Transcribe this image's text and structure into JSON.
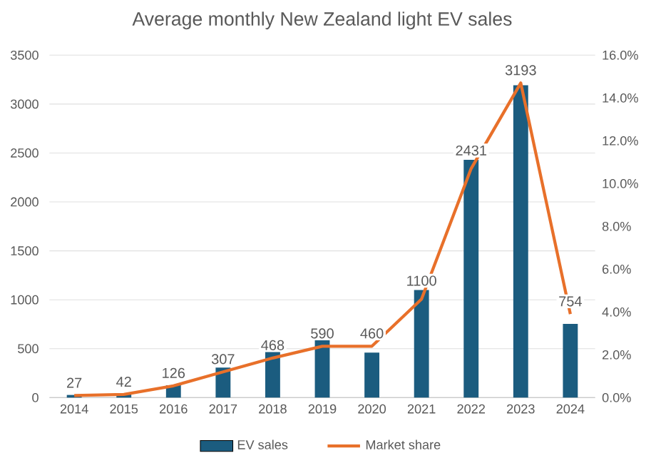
{
  "chart_data": {
    "type": "bar",
    "title": "Average monthly New Zealand light EV sales",
    "categories": [
      "2014",
      "2015",
      "2016",
      "2017",
      "2018",
      "2019",
      "2020",
      "2021",
      "2022",
      "2023",
      "2024"
    ],
    "series": [
      {
        "name": "EV sales",
        "color": "#1b5c7f",
        "values": [
          27,
          42,
          126,
          307,
          468,
          590,
          460,
          1100,
          2431,
          3193,
          754
        ],
        "value_labels": [
          "27",
          "42",
          "126",
          "307",
          "468",
          "590",
          "460",
          "1100",
          "2431",
          "3193",
          "754"
        ]
      },
      {
        "name": "Market share",
        "type": "line",
        "axis": "y2",
        "color": "#e8702a",
        "values": [
          0.1,
          0.15,
          0.55,
          1.2,
          1.85,
          2.4,
          2.4,
          4.6,
          10.7,
          14.7,
          3.9
        ]
      }
    ],
    "ylim": [
      0,
      3500
    ],
    "yticks": [
      0,
      500,
      1000,
      1500,
      2000,
      2500,
      3000,
      3500
    ],
    "y2lim": [
      0,
      16
    ],
    "y2ticks": [
      {
        "value": 0,
        "label": "0.0%"
      },
      {
        "value": 2,
        "label": "2.0%"
      },
      {
        "value": 4,
        "label": "4.0%"
      },
      {
        "value": 6,
        "label": "6.0%"
      },
      {
        "value": 8,
        "label": "8.0%"
      },
      {
        "value": 10,
        "label": "10.0%"
      },
      {
        "value": 12,
        "label": "12.0%"
      },
      {
        "value": 14,
        "label": "14.0%"
      },
      {
        "value": 16,
        "label": "16.0%"
      }
    ],
    "grid": "y",
    "legend": "bottom",
    "marker": "none",
    "line_style": "solid"
  }
}
